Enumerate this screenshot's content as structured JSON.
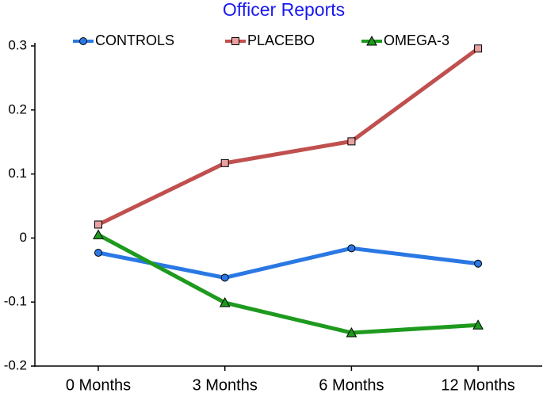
{
  "chart_data": {
    "type": "line",
    "title": "Officer Reports",
    "categories": [
      "0 Months",
      "3 Months",
      "6 Months",
      "12 Months"
    ],
    "series": [
      {
        "name": "CONTROLS",
        "color": "#2a78e4",
        "marker": "circle",
        "values": [
          -0.023,
          -0.062,
          -0.016,
          -0.04
        ]
      },
      {
        "name": "PLACEBO",
        "color": "#c0504f",
        "marker": "square",
        "values": [
          0.021,
          0.117,
          0.151,
          0.296
        ]
      },
      {
        "name": "OMEGA-3",
        "color": "#1e9a1e",
        "marker": "triangle",
        "values": [
          0.005,
          -0.101,
          -0.148,
          -0.136
        ]
      }
    ],
    "ylim": [
      -0.2,
      0.3
    ],
    "yticks": [
      -0.2,
      -0.1,
      0,
      0.1,
      0.2,
      0.3
    ],
    "grid": false
  }
}
